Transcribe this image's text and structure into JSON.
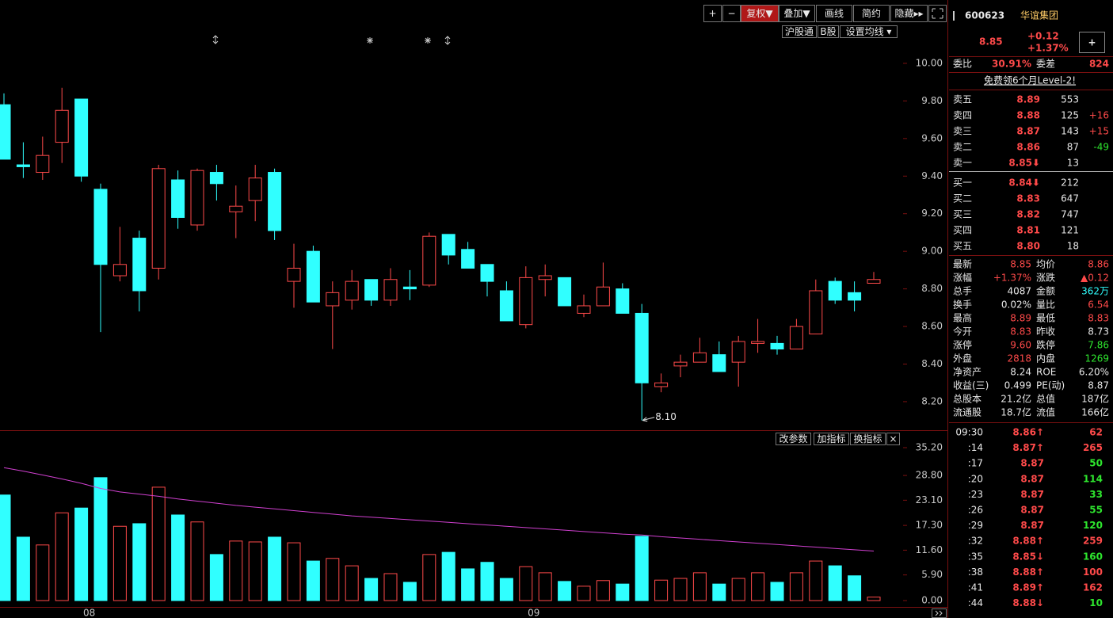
{
  "chart_data": [
    {
      "type": "candlestick",
      "categories": [
        null,
        null,
        null,
        null,
        "08",
        null,
        null,
        null,
        null,
        null,
        null,
        null,
        null,
        null,
        null,
        null,
        null,
        null,
        null,
        null,
        null,
        null,
        null,
        null,
        null,
        null,
        null,
        "09",
        null,
        null,
        null,
        null,
        null,
        null,
        null,
        null,
        null,
        null,
        null,
        null,
        null,
        null,
        null,
        null,
        null,
        null
      ],
      "open": [
        9.78,
        9.46,
        9.42,
        9.58,
        9.81,
        9.33,
        8.87,
        9.07,
        8.91,
        9.38,
        9.14,
        9.42,
        9.21,
        9.27,
        9.42,
        8.84,
        9.0,
        8.71,
        8.74,
        8.85,
        8.74,
        8.81,
        8.82,
        9.09,
        9.01,
        8.93,
        8.79,
        8.61,
        8.85,
        8.86,
        8.67,
        8.71,
        8.8,
        8.67,
        8.28,
        8.39,
        8.41,
        8.45,
        8.41,
        8.51,
        8.51,
        8.48,
        8.56,
        8.84,
        8.78,
        8.83
      ],
      "high": [
        9.84,
        9.58,
        9.61,
        9.87,
        9.81,
        9.36,
        9.13,
        9.11,
        9.46,
        9.43,
        9.44,
        9.46,
        9.35,
        9.46,
        9.44,
        9.04,
        9.03,
        8.84,
        8.9,
        8.85,
        8.91,
        8.9,
        9.1,
        9.09,
        9.05,
        8.93,
        8.84,
        8.92,
        8.93,
        8.86,
        8.77,
        8.94,
        8.83,
        8.72,
        8.35,
        8.45,
        8.54,
        8.52,
        8.55,
        8.64,
        8.55,
        8.64,
        8.85,
        8.86,
        8.84,
        8.89
      ],
      "low": [
        9.49,
        9.39,
        9.38,
        9.47,
        9.37,
        8.57,
        8.84,
        8.68,
        8.85,
        9.12,
        9.11,
        9.27,
        9.07,
        9.16,
        9.06,
        8.7,
        8.73,
        8.48,
        8.69,
        8.71,
        8.71,
        8.74,
        8.81,
        8.93,
        8.91,
        8.76,
        8.63,
        8.59,
        8.76,
        8.71,
        8.65,
        8.71,
        8.67,
        8.1,
        8.25,
        8.33,
        8.41,
        8.36,
        8.28,
        8.46,
        8.45,
        8.48,
        8.56,
        8.72,
        8.68,
        8.83
      ],
      "close": [
        9.49,
        9.45,
        9.51,
        9.75,
        9.4,
        8.93,
        8.93,
        8.79,
        9.44,
        9.18,
        9.43,
        9.36,
        9.24,
        9.39,
        9.11,
        8.91,
        8.73,
        8.78,
        8.84,
        8.74,
        8.85,
        8.8,
        9.08,
        8.98,
        8.91,
        8.84,
        8.63,
        8.86,
        8.87,
        8.71,
        8.71,
        8.81,
        8.67,
        8.3,
        8.3,
        8.41,
        8.46,
        8.36,
        8.52,
        8.52,
        8.48,
        8.6,
        8.79,
        8.74,
        8.74,
        8.85
      ],
      "up_color": "#ff4a4a",
      "down_color": "#30ffff",
      "annotation": "8.10",
      "ylim": [
        8.048,
        10.337
      ],
      "yticks": [
        {
          "value": 8.2,
          "label": "8.20"
        },
        {
          "value": 8.4,
          "label": "8.40"
        },
        {
          "value": 8.6,
          "label": "8.60"
        },
        {
          "value": 8.8,
          "label": "8.80"
        },
        {
          "value": 9.0,
          "label": "9.00"
        },
        {
          "value": 9.2,
          "label": "9.20"
        },
        {
          "value": 9.4,
          "label": "9.40"
        },
        {
          "value": 9.6,
          "label": "9.60"
        },
        {
          "value": 9.8,
          "label": "9.80"
        },
        {
          "value": 10.0,
          "label": "10.00"
        }
      ],
      "toolbar": [
        "沪股通",
        "B股",
        "设置均线 ▾"
      ]
    },
    {
      "type": "bar",
      "values": [
        24.3,
        14.6,
        12.8,
        20.2,
        21.3,
        28.3,
        17.1,
        17.7,
        26.1,
        19.7,
        18.1,
        10.6,
        13.7,
        13.5,
        14.6,
        13.3,
        9.1,
        9.7,
        8.0,
        5.1,
        6.2,
        4.2,
        10.6,
        11.1,
        7.3,
        8.8,
        5.1,
        7.8,
        6.4,
        4.4,
        3.3,
        4.6,
        3.8,
        14.8,
        4.7,
        5.1,
        6.4,
        3.8,
        5.1,
        6.4,
        4.2,
        6.4,
        9.1,
        8.0,
        5.7,
        0.8
      ],
      "line_values": [
        30.6,
        29.8,
        28.9,
        28.0,
        27.0,
        25.8,
        25.0,
        24.5,
        24.0,
        23.4,
        22.9,
        22.4,
        21.9,
        21.5,
        21.1,
        20.7,
        20.3,
        19.9,
        19.5,
        19.2,
        18.9,
        18.6,
        18.3,
        18.0,
        17.7,
        17.4,
        17.1,
        16.8,
        16.5,
        16.2,
        15.9,
        15.6,
        15.3,
        15.1,
        14.7,
        14.4,
        14.1,
        13.8,
        13.5,
        13.2,
        12.9,
        12.6,
        12.3,
        12.0,
        11.7,
        11.4
      ],
      "line_color": "#d040d0",
      "ylim": [
        -1.28,
        38.85
      ],
      "yticks": [
        {
          "value": 0,
          "label": "0.00"
        },
        {
          "value": 5.9,
          "label": "5.90"
        },
        {
          "value": 11.6,
          "label": "11.60"
        },
        {
          "value": 17.3,
          "label": "17.30"
        },
        {
          "value": 23.1,
          "label": "23.10"
        },
        {
          "value": 28.8,
          "label": "28.80"
        },
        {
          "value": 35.2,
          "label": "35.20"
        }
      ],
      "toolbar": [
        "改参数",
        "加指标",
        "换指标",
        "×"
      ]
    }
  ],
  "toolbar": [
    "+",
    "−",
    "复权▼",
    "叠加▼",
    "画线",
    "简约",
    "隐藏▸▸"
  ],
  "quote": {
    "code": "600623",
    "name": "华谊集团",
    "price": "8.85",
    "change": "+0.12",
    "pct": "+1.37%",
    "add": "+",
    "wb_label": "委比",
    "wb": "30.91%",
    "wc_label": "委差",
    "wc": "824",
    "promo": "免费领6个月Level-2!"
  },
  "order_book": [
    [
      "卖五",
      "8.89",
      "553"
    ],
    [
      "卖四",
      "8.88",
      "125",
      "+16"
    ],
    [
      "卖三",
      "8.87",
      "143",
      "+15"
    ],
    [
      "卖二",
      "8.86",
      "87",
      "-49"
    ],
    [
      "卖一",
      "8.85⬇",
      "13"
    ],
    [
      "买一",
      "8.84⬇",
      "212"
    ],
    [
      "买二",
      "8.83",
      "647"
    ],
    [
      "买三",
      "8.82",
      "747"
    ],
    [
      "买四",
      "8.81",
      "121"
    ],
    [
      "买五",
      "8.80",
      "18"
    ]
  ],
  "stats": [
    {
      "label": "最新",
      "value": "8.85",
      "color": "#ff4a4a"
    },
    {
      "label": "均价",
      "value": "8.86",
      "color": "#ff4a4a"
    },
    {
      "label": "涨幅",
      "value": "+1.37%",
      "color": "#ff4a4a"
    },
    {
      "label": "涨跌",
      "value": "▲0.12",
      "color": "#ff4a4a"
    },
    {
      "label": "总手",
      "value": "4087",
      "color": "#e8e8e8"
    },
    {
      "label": "金额",
      "value": "362万",
      "color": "#30ffff"
    },
    {
      "label": "换手",
      "value": "0.02%",
      "color": "#e8e8e8"
    },
    {
      "label": "量比",
      "value": "6.54",
      "color": "#ff4a4a"
    },
    {
      "label": "最高",
      "value": "8.89",
      "color": "#ff4a4a"
    },
    {
      "label": "最低",
      "value": "8.83",
      "color": "#ff4a4a"
    },
    {
      "label": "今开",
      "value": "8.83",
      "color": "#ff4a4a"
    },
    {
      "label": "昨收",
      "value": "8.73",
      "color": "#e8e8e8"
    },
    {
      "label": "涨停",
      "value": "9.60",
      "color": "#ff4a4a"
    },
    {
      "label": "跌停",
      "value": "7.86",
      "color": "#2ee62e"
    },
    {
      "label": "外盘",
      "value": "2818",
      "color": "#ff4a4a"
    },
    {
      "label": "内盘",
      "value": "1269",
      "color": "#2ee62e"
    },
    {
      "label": "净资产",
      "value": "8.24",
      "color": "#e8e8e8"
    },
    {
      "label": "ROE",
      "value": "6.20%",
      "color": "#e8e8e8"
    },
    {
      "label": "收益(三)",
      "value": "0.499",
      "color": "#e8e8e8"
    },
    {
      "label": "PE(动)",
      "value": "8.87",
      "color": "#e8e8e8"
    },
    {
      "label": "总股本",
      "value": "21.2亿",
      "color": "#e8e8e8"
    },
    {
      "label": "总值",
      "value": "187亿",
      "color": "#e8e8e8"
    },
    {
      "label": "流通股",
      "value": "18.7亿",
      "color": "#e8e8e8"
    },
    {
      "label": "流值",
      "value": "166亿",
      "color": "#e8e8e8"
    }
  ],
  "ticks": [
    {
      "time": "09:30",
      "price": "8.86↑",
      "vol": "62",
      "color": "#ff4a4a"
    },
    {
      "time": ":14",
      "price": "8.87↑",
      "vol": "265",
      "color": "#ff4a4a"
    },
    {
      "time": ":17",
      "price": "8.87",
      "vol": "50",
      "color": "#2ee62e"
    },
    {
      "time": ":20",
      "price": "8.87",
      "vol": "114",
      "color": "#2ee62e"
    },
    {
      "time": ":23",
      "price": "8.87",
      "vol": "33",
      "color": "#2ee62e"
    },
    {
      "time": ":26",
      "price": "8.87",
      "vol": "55",
      "color": "#2ee62e"
    },
    {
      "time": ":29",
      "price": "8.87",
      "vol": "120",
      "color": "#2ee62e"
    },
    {
      "time": ":32",
      "price": "8.88↑",
      "vol": "259",
      "color": "#ff4a4a"
    },
    {
      "time": ":35",
      "price": "8.85↓",
      "vol": "160",
      "color": "#2ee62e"
    },
    {
      "time": ":38",
      "price": "8.88↑",
      "vol": "100",
      "color": "#ff4a4a"
    },
    {
      "time": ":41",
      "price": "8.89↑",
      "vol": "162",
      "color": "#ff4a4a"
    },
    {
      "time": ":44",
      "price": "8.88↓",
      "vol": "10",
      "color": "#2ee62e"
    }
  ]
}
